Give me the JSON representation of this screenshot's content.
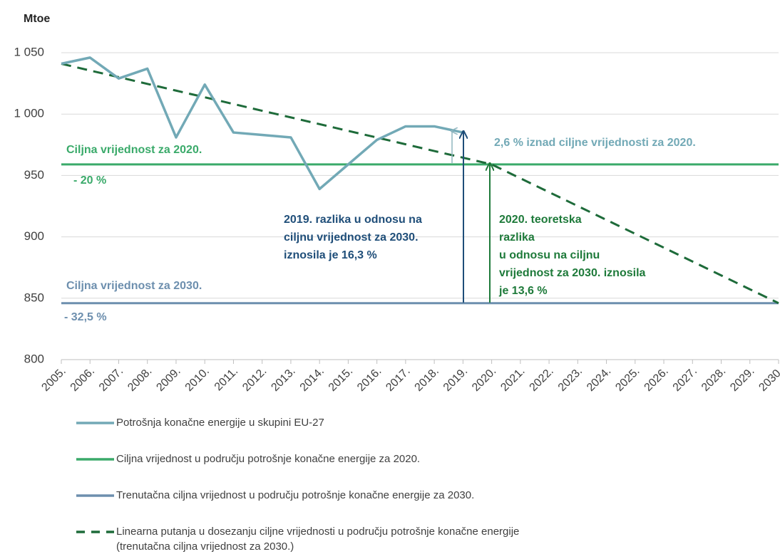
{
  "chart_data": {
    "type": "line",
    "y_label": "Mtoe",
    "categories": [
      "2005.",
      "2006.",
      "2007.",
      "2008.",
      "2009.",
      "2010.",
      "2011.",
      "2012.",
      "2013.",
      "2014.",
      "2015.",
      "2016.",
      "2017.",
      "2018.",
      "2019.",
      "2020.",
      "2021.",
      "2022.",
      "2023.",
      "2024.",
      "2025.",
      "2026.",
      "2027.",
      "2028.",
      "2029.",
      "2030."
    ],
    "series": [
      {
        "name": "Potrošnja konačne energije u skupini EU-27",
        "color": "#72a9b6",
        "style": "solid",
        "values": [
          1041,
          1046,
          1029,
          1037,
          981,
          1024,
          985,
          983,
          981,
          939,
          959,
          979,
          990,
          990,
          985,
          null,
          null,
          null,
          null,
          null,
          null,
          null,
          null,
          null,
          null,
          null
        ]
      },
      {
        "name": "Ciljna vrijednost u području potrošnje konačne energije za 2020.",
        "color": "#3aaa6a",
        "style": "solid",
        "values": [
          959,
          959,
          959,
          959,
          959,
          959,
          959,
          959,
          959,
          959,
          959,
          959,
          959,
          959,
          959,
          959,
          959,
          959,
          959,
          959,
          959,
          959,
          959,
          959,
          959,
          959
        ]
      },
      {
        "name": "Trenutačna ciljna vrijednost u području potrošnje konačne energije za 2030.",
        "color": "#6d8fae",
        "style": "solid",
        "values": [
          846,
          846,
          846,
          846,
          846,
          846,
          846,
          846,
          846,
          846,
          846,
          846,
          846,
          846,
          846,
          846,
          846,
          846,
          846,
          846,
          846,
          846,
          846,
          846,
          846,
          846
        ]
      },
      {
        "name": "Linearna putanja u dosezanju ciljne vrijednosti u području potrošnje konačne energije (trenutačna ciljna vrijednost za 2030.)",
        "color": "#1e6b3a",
        "style": "dashed",
        "values": [
          1041,
          1035.5,
          1030.1,
          1024.6,
          1019.1,
          1013.7,
          1008.2,
          1002.7,
          997.3,
          991.8,
          986.3,
          980.9,
          975.4,
          969.9,
          964.5,
          959,
          947.7,
          936.4,
          925.1,
          913.8,
          902.5,
          891.2,
          879.9,
          868.6,
          857.3,
          846
        ]
      }
    ],
    "ylim": [
      800,
      1050
    ],
    "yticks": [
      800,
      850,
      900,
      950,
      {
        "value": 1000,
        "label": "1 000"
      },
      {
        "value": 1050,
        "label": "1 050"
      }
    ],
    "grid": true,
    "annotations": {
      "target_2020": "Ciljna vrijednost za 2020.",
      "target_2020_pct": "- 20 %",
      "target_2030": "Ciljna vrijednost za 2030.",
      "target_2030_pct": "- 32,5 %",
      "above_2020": "2,6 % iznad ciljne vrijednosti za 2020.",
      "gap_2019": [
        "2019. razlika u odnosu na",
        "ciljnu vrijednost za 2030.",
        "iznosila je 16,3 %"
      ],
      "gap_2020": [
        "2020. teoretska",
        "razlika",
        "u odnosu na ciljnu",
        "vrijednost za 2030. iznosila",
        "je 13,6 %"
      ]
    }
  }
}
